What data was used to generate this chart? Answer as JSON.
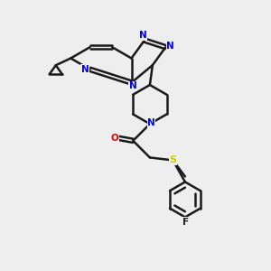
{
  "bg_color": "#eeeeee",
  "bond_color": "#1a1a1a",
  "nitrogen_color": "#0000ee",
  "oxygen_color": "#ee0000",
  "sulfur_color": "#cccc00",
  "line_width": 1.8,
  "figsize": [
    3.0,
    3.0
  ],
  "dpi": 100,
  "xlim": [
    0,
    10
  ],
  "ylim": [
    0,
    10
  ]
}
